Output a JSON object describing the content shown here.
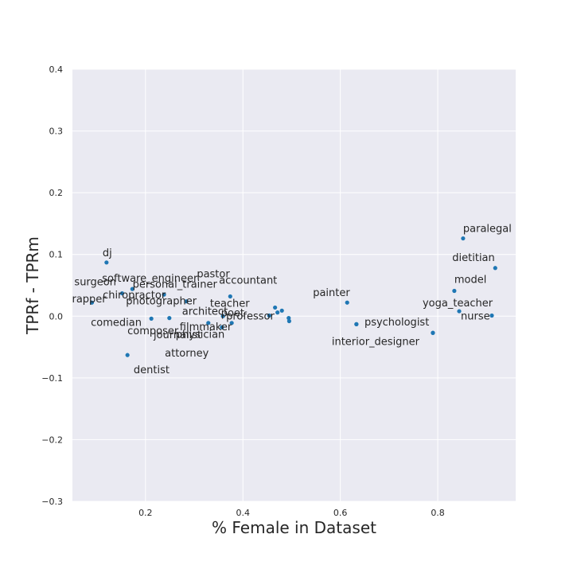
{
  "chart_data": {
    "type": "scatter",
    "title": "",
    "xlabel": "% Female in Dataset",
    "ylabel": "TPRf - TPRm",
    "xlim": [
      0.05,
      0.96
    ],
    "ylim": [
      -0.3,
      0.4
    ],
    "xticks": [
      "0.2",
      "0.4",
      "0.6",
      "0.8"
    ],
    "xtick_values": [
      0.2,
      0.4,
      0.6,
      0.8
    ],
    "yticks": [
      "−0.3",
      "−0.2",
      "−0.1",
      "0.0",
      "0.1",
      "0.2",
      "0.3",
      "0.4"
    ],
    "ytick_values": [
      -0.3,
      -0.2,
      -0.1,
      0.0,
      0.1,
      0.2,
      0.3,
      0.4
    ],
    "grid": true,
    "background": "#eaeaf2",
    "point_color": "#1f77b4",
    "points": [
      {
        "label": "dj",
        "x": 0.12,
        "y": 0.087
      },
      {
        "label": "software_engineer",
        "x": 0.173,
        "y": 0.044
      },
      {
        "label": "surgeon",
        "x": 0.152,
        "y": 0.037
      },
      {
        "label": "chiropractor",
        "x": 0.238,
        "y": 0.035
      },
      {
        "label": "rapper",
        "x": 0.09,
        "y": 0.022
      },
      {
        "label": "photographer",
        "x": 0.284,
        "y": 0.024
      },
      {
        "label": "comedian",
        "x": 0.212,
        "y": -0.004
      },
      {
        "label": "composer",
        "x": 0.163,
        "y": -0.063
      },
      {
        "label": "pastor",
        "x": 0.374,
        "y": 0.032
      },
      {
        "label": "architect",
        "x": 0.249,
        "y": -0.003
      },
      {
        "label": "filmmaker",
        "x": 0.329,
        "y": -0.011
      },
      {
        "label": "dentist",
        "x": 0.357,
        "y": -0.018
      },
      {
        "label": "professor",
        "x": 0.359,
        "y": 0.0
      },
      {
        "label": "attorney",
        "x": 0.377,
        "y": -0.011
      },
      {
        "label": "personal_trainer",
        "x": 0.466,
        "y": 0.014
      },
      {
        "label": "accountant",
        "x": 0.48,
        "y": 0.009
      },
      {
        "label": "poet",
        "x": 0.471,
        "y": 0.006
      },
      {
        "label": "physician",
        "x": 0.494,
        "y": -0.003
      },
      {
        "label": "",
        "x": 0.454,
        "y": 0.001
      },
      {
        "label": "",
        "x": 0.495,
        "y": -0.008
      },
      {
        "label": "painter",
        "x": 0.614,
        "y": 0.022
      },
      {
        "label": "teacher",
        "x": 0.633,
        "y": -0.013
      },
      {
        "label": "journalist",
        "x": 0.79,
        "y": -0.027
      },
      {
        "label": "paralegal",
        "x": 0.852,
        "y": 0.126
      },
      {
        "label": "dietitian",
        "x": 0.918,
        "y": 0.078
      },
      {
        "label": "model",
        "x": 0.834,
        "y": 0.041
      },
      {
        "label": "yoga_teacher",
        "x": 0.844,
        "y": 0.008
      },
      {
        "label": "nurse",
        "x": 0.911,
        "y": 0.001
      },
      {
        "label": "psychologist",
        "x": 0.79,
        "y": -0.027
      },
      {
        "label": "interior_designer",
        "x": 0.633,
        "y": -0.013
      }
    ]
  }
}
